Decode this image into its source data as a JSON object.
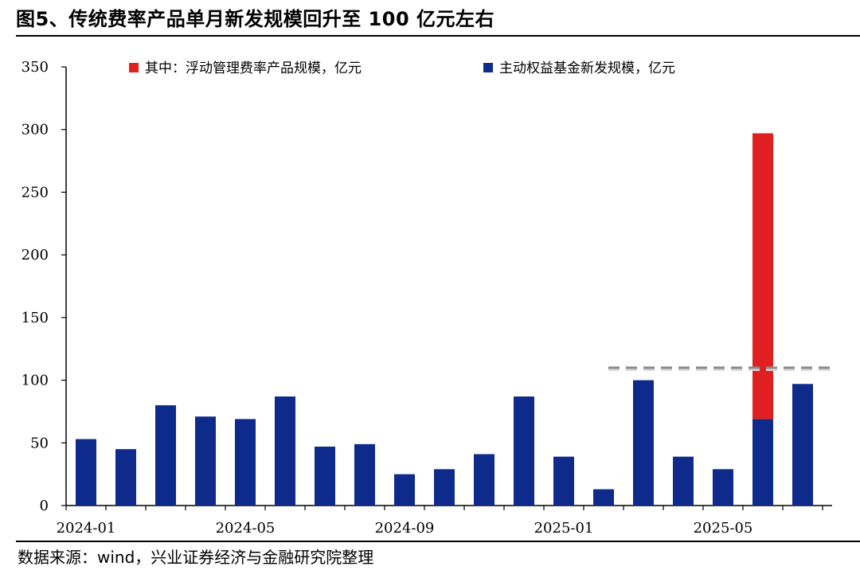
{
  "figure": {
    "title": "图5、传统费率产品单月新发规模回升至 100 亿元左右",
    "source": "数据来源：wind，兴业证券经济与金融研究院整理"
  },
  "colors": {
    "main_series": "#0e2a8a",
    "floating_series": "#e02020",
    "reference_line": "#8a8a8a"
  },
  "chart_data": {
    "type": "bar",
    "stacked": true,
    "categories": [
      "2024-01",
      "2024-02",
      "2024-03",
      "2024-04",
      "2024-05",
      "2024-06",
      "2024-07",
      "2024-08",
      "2024-09",
      "2024-10",
      "2024-11",
      "2024-12",
      "2025-01",
      "2025-02",
      "2025-03",
      "2025-04",
      "2025-05",
      "2025-06",
      "2025-07"
    ],
    "x_tick_labels": [
      "2024-01",
      "2024-05",
      "2024-09",
      "2025-01",
      "2025-05"
    ],
    "series": [
      {
        "name": "主动权益基金新发规模，亿元",
        "color": "#0e2a8a",
        "values": [
          53,
          45,
          80,
          71,
          69,
          87,
          47,
          49,
          25,
          29,
          41,
          87,
          39,
          13,
          100,
          39,
          29,
          69,
          97
        ]
      },
      {
        "name": "其中：浮动管理费率产品规模，亿元",
        "color": "#e02020",
        "values": [
          0,
          0,
          0,
          0,
          0,
          0,
          0,
          0,
          0,
          0,
          0,
          0,
          0,
          0,
          0,
          0,
          0,
          228,
          0
        ]
      }
    ],
    "y_ticks": [
      0,
      50,
      100,
      150,
      200,
      250,
      300,
      350
    ],
    "ylim": [
      0,
      350
    ],
    "reference_line": {
      "value": 110,
      "style": "dashed",
      "from_category": "2025-02"
    },
    "legend": {
      "order": [
        "其中：浮动管理费率产品规模，亿元",
        "主动权益基金新发规模，亿元"
      ],
      "position": "top"
    },
    "grid": false
  }
}
